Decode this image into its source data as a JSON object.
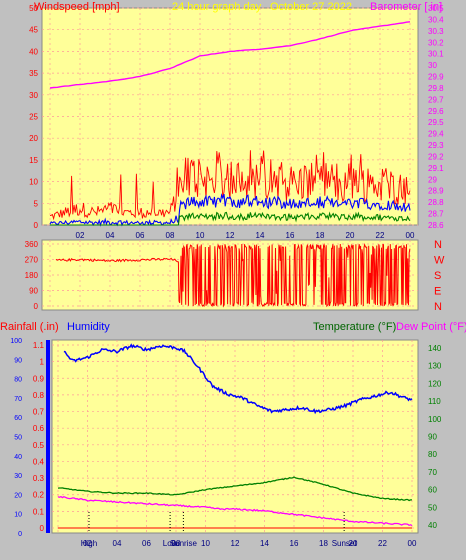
{
  "header": {
    "left_title": "Windspeed [mph]",
    "center_title": "24 hour graph day",
    "date": "October 27 2022",
    "right_title": "Barometer [.in]"
  },
  "colors": {
    "background": "#c0c0c0",
    "plot_bg": "#ffff99",
    "grid": "#ff9999",
    "wind": "#ff0000",
    "wind_avg": "#0000ff",
    "wind_min": "#008000",
    "barometer": "#ff00ff",
    "rain": "#ff0000",
    "humidity": "#0000ff",
    "temperature": "#008000",
    "dewpoint": "#ff00ff",
    "time_labels": "#000080"
  },
  "x_tick_labels": [
    "02",
    "04",
    "06",
    "08",
    "10",
    "12",
    "14",
    "16",
    "18",
    "20",
    "22",
    "00"
  ],
  "panel1": {
    "left_ticks": [
      "50",
      "45",
      "40",
      "35",
      "30",
      "25",
      "20",
      "15",
      "10",
      "5",
      "0"
    ],
    "right_ticks": [
      "30.5",
      "30.4",
      "30.3",
      "30.2",
      "30.1",
      "30",
      "29.9",
      "29.8",
      "29.7",
      "29.6",
      "29.5",
      "29.4",
      "29.3",
      "29.2",
      "29.1",
      "29",
      "28.9",
      "28.8",
      "28.7",
      "28.6"
    ]
  },
  "panel2": {
    "left_ticks": [
      "360",
      "270",
      "180",
      "90",
      "0"
    ],
    "compass": [
      "N",
      "W",
      "S",
      "E",
      "N"
    ]
  },
  "panel3": {
    "left_label": "Rainfall (.in)",
    "humidity_label": "Humidity",
    "temp_label": "Temperature (°F)",
    "dew_label": "Dew Point (°F)",
    "rain_ticks": [
      "1.1",
      "1",
      "0.9",
      "0.8",
      "0.7",
      "0.6",
      "0.5",
      "0.4",
      "0.3",
      "0.2",
      "0.1",
      "0"
    ],
    "humidity_ticks": [
      "100",
      "90",
      "80",
      "70",
      "60",
      "50",
      "40",
      "30",
      "20",
      "10",
      "0"
    ],
    "temp_ticks": [
      "140",
      "130",
      "120",
      "110",
      "100",
      "90",
      "80",
      "70",
      "60",
      "50",
      "40"
    ],
    "markers": [
      {
        "label": "High",
        "hour": 2.1
      },
      {
        "label": "Low",
        "hour": 7.6
      },
      {
        "label": "Sunrise",
        "hour": 8.5
      },
      {
        "label": "Sunset",
        "hour": 19.4
      }
    ]
  },
  "chart_data": [
    {
      "type": "line",
      "x_unit": "hour",
      "x_tick_labels": [
        "02",
        "04",
        "06",
        "08",
        "10",
        "12",
        "14",
        "16",
        "18",
        "20",
        "22",
        "00"
      ],
      "ylim_left": [
        0,
        50
      ],
      "ylim_right": [
        28.6,
        30.5
      ],
      "series": [
        {
          "name": "Windspeed [mph]",
          "axis": "left",
          "style": "spikes",
          "points": [
            [
              0,
              2
            ],
            [
              1,
              3
            ],
            [
              2,
              4
            ],
            [
              3,
              3
            ],
            [
              4,
              4
            ],
            [
              5,
              3
            ],
            [
              6,
              3
            ],
            [
              7,
              3
            ],
            [
              8,
              3
            ],
            [
              8.7,
              9
            ],
            [
              9.5,
              12
            ],
            [
              10.5,
              11
            ],
            [
              11.5,
              12
            ],
            [
              12.5,
              11
            ],
            [
              13.5,
              12
            ],
            [
              14.5,
              11
            ],
            [
              15.5,
              11
            ],
            [
              16.5,
              10
            ],
            [
              17.5,
              11
            ],
            [
              18.5,
              11
            ],
            [
              19.5,
              10
            ],
            [
              20.5,
              11
            ],
            [
              21.5,
              10
            ],
            [
              22.5,
              10
            ],
            [
              23.5,
              9
            ],
            [
              24,
              8
            ]
          ]
        },
        {
          "name": "Barometer [.in]",
          "axis": "right",
          "points": [
            [
              0,
              29.8
            ],
            [
              2,
              29.83
            ],
            [
              4,
              29.86
            ],
            [
              6,
              29.9
            ],
            [
              8,
              29.97
            ],
            [
              10,
              30.08
            ],
            [
              12,
              30.12
            ],
            [
              14,
              30.14
            ],
            [
              16,
              30.17
            ],
            [
              18,
              30.23
            ],
            [
              20,
              30.3
            ],
            [
              22,
              30.34
            ],
            [
              24,
              30.38
            ]
          ]
        }
      ]
    },
    {
      "type": "line",
      "x_unit": "hour",
      "ylim": [
        0,
        360
      ],
      "series": [
        {
          "name": "Wind direction",
          "style": "oscillating",
          "points": [
            [
              0.5,
              265
            ],
            [
              2,
              270
            ],
            [
              4,
              262
            ],
            [
              6,
              268
            ],
            [
              8,
              272
            ],
            [
              8.6,
              260
            ]
          ],
          "oscillating_from_hour": 8.6,
          "oscillation_range": [
            0,
            360
          ]
        }
      ]
    },
    {
      "type": "line",
      "x_unit": "hour",
      "ylim_rain": [
        0,
        1.1
      ],
      "ylim_humidity": [
        0,
        100
      ],
      "ylim_temp": [
        40,
        140
      ],
      "series": [
        {
          "name": "Humidity",
          "axis": "humidity",
          "points": [
            [
              0.4,
              94
            ],
            [
              1,
              89
            ],
            [
              2,
              91
            ],
            [
              3,
              95
            ],
            [
              4,
              94
            ],
            [
              5,
              97
            ],
            [
              6,
              95
            ],
            [
              7,
              97
            ],
            [
              8,
              96
            ],
            [
              8.6,
              94
            ],
            [
              9.5,
              86
            ],
            [
              10.5,
              76
            ],
            [
              11.5,
              72
            ],
            [
              12.5,
              70
            ],
            [
              13.5,
              66
            ],
            [
              14.5,
              63
            ],
            [
              15.5,
              64
            ],
            [
              16.5,
              65
            ],
            [
              17.5,
              63
            ],
            [
              18.5,
              64
            ],
            [
              19.5,
              66
            ],
            [
              20.5,
              69
            ],
            [
              21.5,
              71
            ],
            [
              22.5,
              73
            ],
            [
              23.5,
              70
            ],
            [
              24,
              69
            ]
          ]
        },
        {
          "name": "Temperature (°F)",
          "axis": "temp",
          "points": [
            [
              0,
              61
            ],
            [
              2,
              59
            ],
            [
              4,
              58
            ],
            [
              6,
              58
            ],
            [
              8,
              57
            ],
            [
              10,
              60
            ],
            [
              12,
              62
            ],
            [
              14,
              64
            ],
            [
              16,
              67
            ],
            [
              18,
              63
            ],
            [
              20,
              58
            ],
            [
              22,
              55
            ],
            [
              24,
              54
            ]
          ]
        },
        {
          "name": "Dew Point (°F)",
          "axis": "temp",
          "points": [
            [
              0,
              56
            ],
            [
              2,
              54
            ],
            [
              4,
              53
            ],
            [
              6,
              52
            ],
            [
              8,
              51
            ],
            [
              10,
              50
            ],
            [
              11,
              49
            ],
            [
              12,
              49
            ],
            [
              14,
              48
            ],
            [
              16,
              46
            ],
            [
              18,
              44
            ],
            [
              20,
              42
            ],
            [
              22,
              41
            ],
            [
              24,
              40
            ]
          ]
        },
        {
          "name": "Rainfall (.in)",
          "axis": "rain",
          "points": [
            [
              0,
              0
            ],
            [
              24,
              0
            ]
          ]
        }
      ]
    }
  ]
}
